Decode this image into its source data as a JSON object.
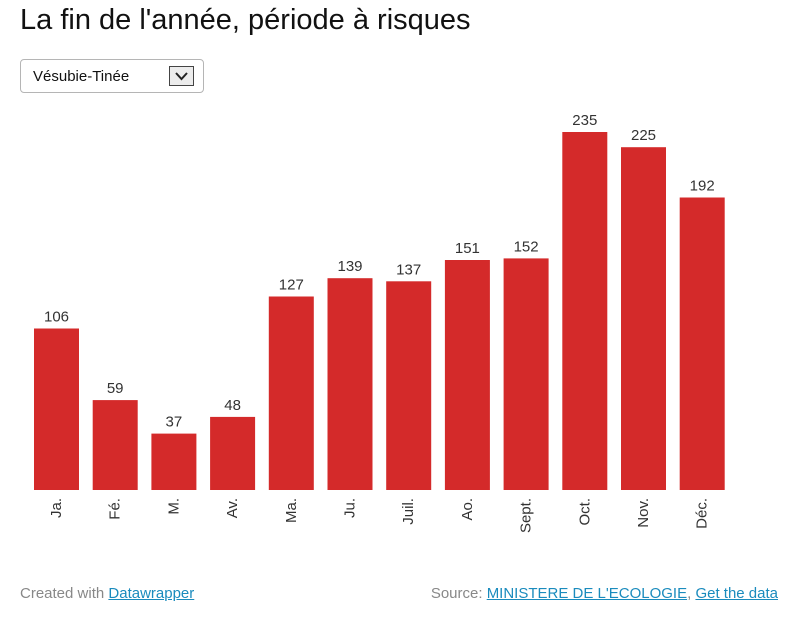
{
  "header": {
    "title": "La fin de l'année, période à risques"
  },
  "filter": {
    "selected": "Vésubie-Tinée"
  },
  "chart_data": {
    "type": "bar",
    "title": "La fin de l'année, période à risques",
    "categories": [
      "Ja.",
      "Fé.",
      "M.",
      "Av.",
      "Ma.",
      "Ju.",
      "Juil.",
      "Ao.",
      "Sept.",
      "Oct.",
      "Nov.",
      "Déc."
    ],
    "values": [
      106,
      59,
      37,
      48,
      127,
      139,
      137,
      151,
      152,
      235,
      225,
      192
    ],
    "series_name": "Vésubie-Tinée",
    "xlabel": "",
    "ylabel": "",
    "ylim": [
      0,
      235
    ],
    "grid": false,
    "bar_color": "#d42a2a"
  },
  "footer": {
    "created_prefix": "Created with",
    "created_link": "Datawrapper",
    "source_prefix": "Source:",
    "source_link": "MINISTERE DE L'ECOLOGIE",
    "separator": ",",
    "get_data_link": "Get the data"
  }
}
